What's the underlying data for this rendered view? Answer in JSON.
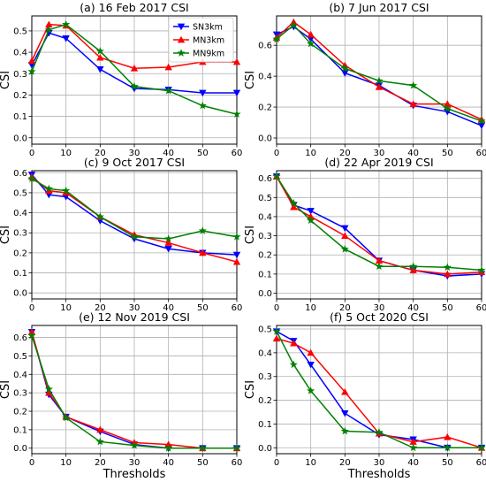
{
  "colors": {
    "SN3km": "#0000ff",
    "MN3km": "#ff0000",
    "MN9km": "#008000",
    "grid": "#b0b0b0"
  },
  "chart_data": [
    {
      "type": "line",
      "title": "(a) 16 Feb 2017 CSI",
      "xlabel": "",
      "ylabel": "CSI",
      "xlim": [
        0,
        60
      ],
      "ylim": [
        -0.03,
        0.57
      ],
      "xticks": [
        "0",
        "10",
        "20",
        "30",
        "40",
        "50",
        "60"
      ],
      "yticks": [
        "0.0",
        "0.1",
        "0.2",
        "0.3",
        "0.4",
        "0.5"
      ],
      "ytick_values": [
        0,
        0.1,
        0.2,
        0.3,
        0.4,
        0.5
      ],
      "grid": true,
      "legend": "top-right",
      "x": [
        0,
        5,
        10,
        20,
        30,
        40,
        50,
        60
      ],
      "series": [
        {
          "name": "SN3km",
          "marker": "triangle-down",
          "values": [
            0.34,
            0.49,
            0.465,
            0.32,
            0.23,
            0.225,
            0.21,
            0.21
          ]
        },
        {
          "name": "MN3km",
          "marker": "triangle-up",
          "values": [
            0.36,
            0.53,
            0.525,
            0.375,
            0.325,
            0.33,
            0.355,
            0.355
          ]
        },
        {
          "name": "MN9km",
          "marker": "star",
          "values": [
            0.31,
            0.505,
            0.53,
            0.405,
            0.24,
            0.22,
            0.15,
            0.11
          ]
        }
      ]
    },
    {
      "type": "line",
      "title": "(b) 7 Jun 2017 CSI",
      "xlabel": "",
      "ylabel": "CSI",
      "xlim": [
        0,
        60
      ],
      "ylim": [
        -0.04,
        0.79
      ],
      "xticks": [
        "0",
        "10",
        "20",
        "30",
        "40",
        "50",
        "60"
      ],
      "yticks": [
        "0.0",
        "0.2",
        "0.4",
        "0.6"
      ],
      "ytick_values": [
        0,
        0.2,
        0.4,
        0.6
      ],
      "grid": true,
      "x": [
        0,
        5,
        10,
        20,
        30,
        40,
        50,
        60
      ],
      "series": [
        {
          "marker": "triangle-down",
          "values": [
            0.67,
            0.72,
            0.64,
            0.42,
            0.34,
            0.21,
            0.17,
            0.08
          ]
        },
        {
          "marker": "triangle-up",
          "values": [
            0.65,
            0.75,
            0.67,
            0.47,
            0.33,
            0.22,
            0.22,
            0.12
          ]
        },
        {
          "marker": "star",
          "values": [
            0.64,
            0.73,
            0.61,
            0.45,
            0.37,
            0.34,
            0.19,
            0.11
          ]
        }
      ]
    },
    {
      "type": "line",
      "title": "(c) 9 Oct 2017 CSI",
      "xlabel": "",
      "ylabel": "CSI",
      "xlim": [
        0,
        60
      ],
      "ylim": [
        -0.03,
        0.61
      ],
      "xticks": [
        "0",
        "10",
        "20",
        "30",
        "40",
        "50",
        "60"
      ],
      "yticks": [
        "0.0",
        "0.1",
        "0.2",
        "0.3",
        "0.4",
        "0.5",
        "0.6"
      ],
      "ytick_values": [
        0,
        0.1,
        0.2,
        0.3,
        0.4,
        0.5,
        0.6
      ],
      "grid": true,
      "x": [
        0,
        5,
        10,
        20,
        30,
        40,
        50,
        60
      ],
      "series": [
        {
          "marker": "triangle-down",
          "values": [
            0.59,
            0.49,
            0.48,
            0.36,
            0.27,
            0.22,
            0.2,
            0.19
          ]
        },
        {
          "marker": "triangle-up",
          "values": [
            0.58,
            0.51,
            0.5,
            0.38,
            0.29,
            0.25,
            0.2,
            0.155
          ]
        },
        {
          "marker": "star",
          "values": [
            0.57,
            0.52,
            0.51,
            0.38,
            0.28,
            0.27,
            0.31,
            0.28
          ]
        }
      ]
    },
    {
      "type": "line",
      "title": "(d) 22 Apr 2019 CSI",
      "xlabel": "",
      "ylabel": "CSI",
      "xlim": [
        0,
        60
      ],
      "ylim": [
        -0.03,
        0.64
      ],
      "xticks": [
        "0",
        "10",
        "20",
        "30",
        "40",
        "50",
        "60"
      ],
      "yticks": [
        "0.0",
        "0.1",
        "0.2",
        "0.3",
        "0.4",
        "0.5",
        "0.6"
      ],
      "ytick_values": [
        0,
        0.1,
        0.2,
        0.3,
        0.4,
        0.5,
        0.6
      ],
      "grid": true,
      "x": [
        0,
        5,
        10,
        20,
        30,
        40,
        50,
        60
      ],
      "series": [
        {
          "marker": "triangle-down",
          "values": [
            0.61,
            0.46,
            0.43,
            0.34,
            0.17,
            0.12,
            0.09,
            0.1
          ]
        },
        {
          "marker": "triangle-up",
          "values": [
            0.61,
            0.45,
            0.4,
            0.3,
            0.17,
            0.12,
            0.1,
            0.11
          ]
        },
        {
          "marker": "star",
          "values": [
            0.61,
            0.47,
            0.38,
            0.23,
            0.14,
            0.14,
            0.135,
            0.12
          ]
        }
      ]
    },
    {
      "type": "line",
      "title": "(e) 12 Nov 2019 CSI",
      "xlabel": "Thresholds",
      "ylabel": "CSI",
      "xlim": [
        0,
        60
      ],
      "ylim": [
        -0.03,
        0.665
      ],
      "xticks": [
        "0",
        "10",
        "20",
        "30",
        "40",
        "50",
        "60"
      ],
      "yticks": [
        "0.0",
        "0.1",
        "0.2",
        "0.3",
        "0.4",
        "0.5",
        "0.6"
      ],
      "ytick_values": [
        0,
        0.1,
        0.2,
        0.3,
        0.4,
        0.5,
        0.6
      ],
      "grid": true,
      "x": [
        0,
        5,
        10,
        20,
        30,
        40,
        50,
        60
      ],
      "series": [
        {
          "marker": "triangle-down",
          "values": [
            0.63,
            0.29,
            0.17,
            0.09,
            0.02,
            0.0,
            0.0,
            0.0
          ]
        },
        {
          "marker": "triangle-up",
          "values": [
            0.63,
            0.3,
            0.17,
            0.1,
            0.03,
            0.02,
            0.0,
            0.0
          ]
        },
        {
          "marker": "star",
          "values": [
            0.61,
            0.32,
            0.165,
            0.035,
            0.015,
            0.0,
            0.0,
            0.0
          ]
        }
      ]
    },
    {
      "type": "line",
      "title": "(f) 5 Oct 2020 CSI",
      "xlabel": "Thresholds",
      "ylabel": "CSI",
      "xlim": [
        0,
        60
      ],
      "ylim": [
        -0.025,
        0.515
      ],
      "xticks": [
        "0",
        "10",
        "20",
        "30",
        "40",
        "50",
        "60"
      ],
      "yticks": [
        "0.0",
        "0.1",
        "0.2",
        "0.3",
        "0.4",
        "0.5"
      ],
      "ytick_values": [
        0,
        0.1,
        0.2,
        0.3,
        0.4,
        0.5
      ],
      "grid": true,
      "x": [
        0,
        5,
        10,
        20,
        30,
        40,
        50,
        60
      ],
      "series": [
        {
          "marker": "triangle-down",
          "values": [
            0.49,
            0.45,
            0.35,
            0.145,
            0.055,
            0.035,
            0.0,
            0.0
          ]
        },
        {
          "marker": "triangle-up",
          "values": [
            0.46,
            0.44,
            0.4,
            0.235,
            0.06,
            0.025,
            0.045,
            0.0
          ]
        },
        {
          "marker": "star",
          "values": [
            0.49,
            0.35,
            0.24,
            0.07,
            0.065,
            0.0,
            0.0,
            0.0
          ]
        }
      ]
    }
  ]
}
